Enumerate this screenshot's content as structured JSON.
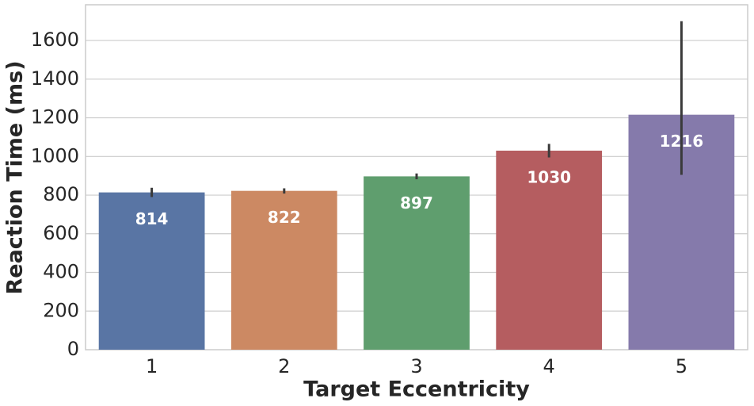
{
  "chart_data": {
    "type": "bar",
    "x_label": "Target Eccentricity",
    "y_label": "Reaction Time (ms)",
    "categories": [
      "1",
      "2",
      "3",
      "4",
      "5"
    ],
    "values": [
      814,
      822,
      897,
      1030,
      1216
    ],
    "ci": [
      [
        790,
        838
      ],
      [
        808,
        835
      ],
      [
        882,
        912
      ],
      [
        995,
        1065
      ],
      [
        905,
        1700
      ]
    ],
    "colors": [
      "#5975a4",
      "#cc8963",
      "#5f9e6e",
      "#b55d60",
      "#857aab"
    ],
    "error_color": "#3a3a3a",
    "ylim": [
      0,
      1785
    ],
    "yticks": [
      0,
      200,
      400,
      600,
      800,
      1000,
      1200,
      1400,
      1600
    ],
    "grid": true
  }
}
